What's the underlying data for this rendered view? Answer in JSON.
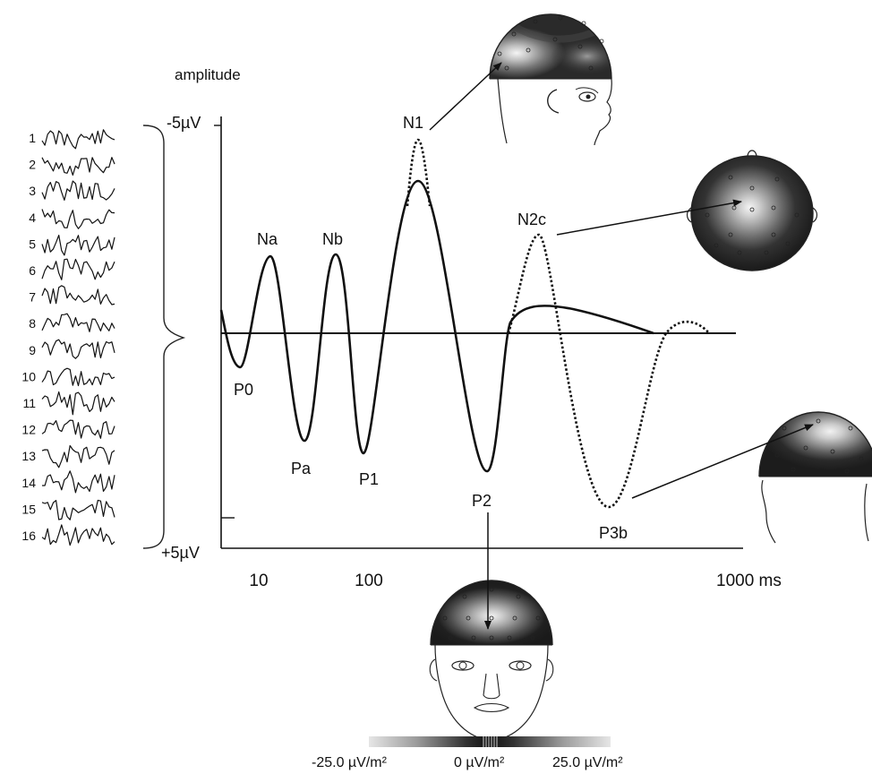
{
  "axis": {
    "ylabel": "amplitude",
    "y_top_label": "-5µV",
    "y_bottom_label": "+5µV",
    "x_ticks": [
      "10",
      "100",
      "1000 ms"
    ]
  },
  "channels": [
    "1",
    "2",
    "3",
    "4",
    "5",
    "6",
    "7",
    "8",
    "9",
    "10",
    "11",
    "12",
    "13",
    "14",
    "15",
    "16"
  ],
  "peaks": {
    "p0": "P0",
    "na": "Na",
    "pa": "Pa",
    "nb": "Nb",
    "p1": "P1",
    "n1": "N1",
    "p2": "P2",
    "n2c": "N2c",
    "p3b": "P3b"
  },
  "colorbar": {
    "min_label": "-25.0 µV/m²",
    "mid_label": "0 µV/m²",
    "max_label": "25.0 µV/m²"
  }
}
